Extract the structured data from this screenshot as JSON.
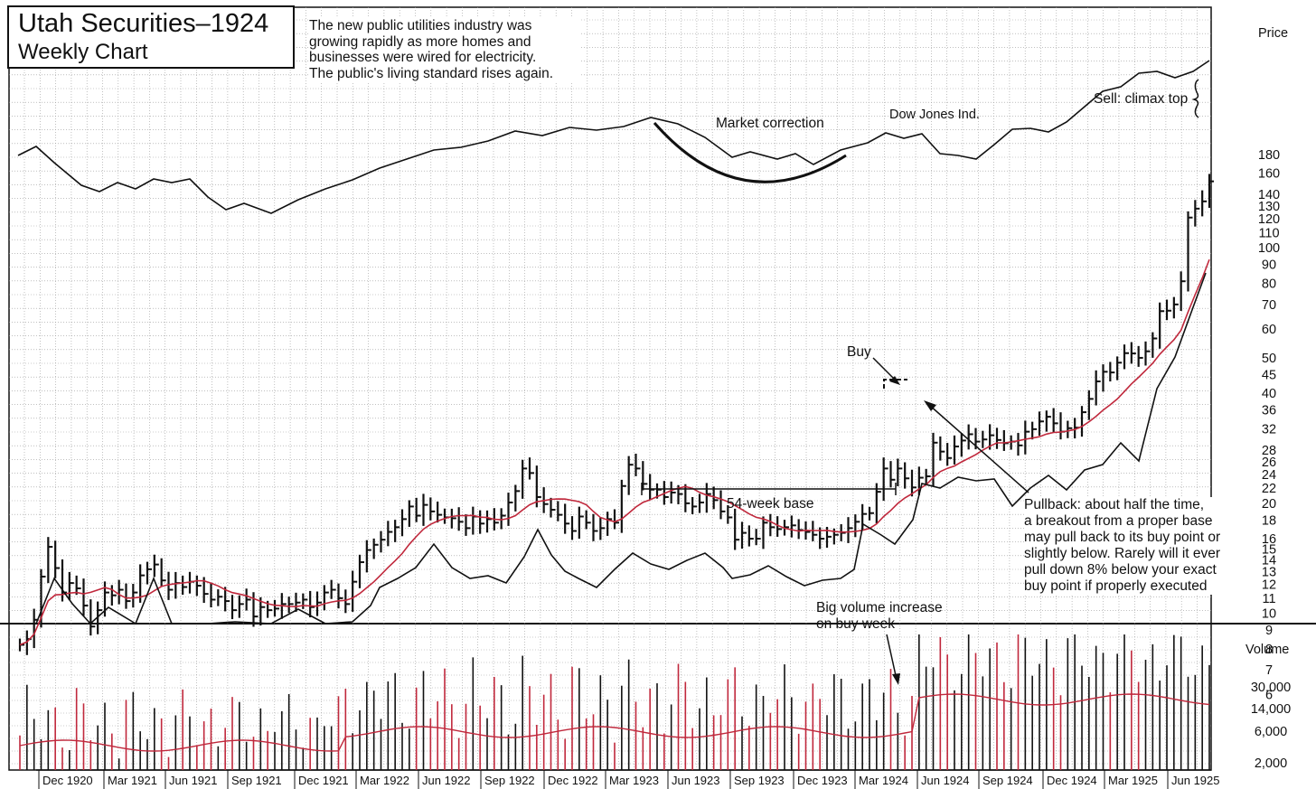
{
  "title": "Utah Securities–1924",
  "subtitle": "Weekly Chart",
  "intro_text": [
    "The new public utilities industry was",
    "growing rapidly as more homes and",
    "businesses were wired for electricity.",
    "The public's living standard rises again."
  ],
  "annotations": {
    "market_correction": "Market correction",
    "dow_jones": "Dow Jones Ind.",
    "sell": "Sell: climax top",
    "buy": "Buy",
    "base": "54-week base",
    "pullback": [
      "Pullback: about half the time,",
      "a breakout from a proper base",
      "may pull back to its buy point or",
      "slightly below. Rarely will it ever",
      "pull down 8% below your exact",
      "buy point if properly executed"
    ],
    "volume_note": [
      "Big volume increase",
      "on buy week"
    ]
  },
  "colors": {
    "price_bar": "#111111",
    "moving_average": "#c0283c",
    "grid": "#9a9a9a"
  },
  "chart_data": {
    "type": "line",
    "price_axis": {
      "label": "Price",
      "scale": "log",
      "ticks": [
        180,
        160,
        140,
        130,
        120,
        110,
        100,
        90,
        80,
        70,
        60,
        50,
        45,
        40,
        36,
        32,
        28,
        26,
        24,
        22,
        20,
        18,
        16,
        15,
        14,
        13,
        12,
        11,
        10,
        9,
        8,
        7,
        6
      ]
    },
    "volume_axis": {
      "label": "Volume",
      "ticks": [
        "30,000",
        "14,000",
        "6,000",
        "2,000"
      ]
    },
    "x_labels": [
      "Dec 1920",
      "Mar 1921",
      "Jun 1921",
      "Sep 1921",
      "Dec 1921",
      "Mar 1922",
      "Jun 1922",
      "Sep 1922",
      "Dec 1922",
      "Mar 1923",
      "Jun 1923",
      "Sep 1923",
      "Dec 1923",
      "Mar 1924",
      "Jun 1924",
      "Sep 1924",
      "Dec 1924",
      "Mar 1925",
      "Jun 1925"
    ],
    "grid": true,
    "price_weekly_close": [
      8.2,
      8.5,
      9.6,
      12.6,
      15.2,
      13.3,
      11.4,
      12.1,
      11.7,
      10.5,
      9.2,
      10.2,
      11.4,
      11.2,
      11.6,
      10.8,
      11.4,
      12.7,
      13.2,
      13.6,
      12.3,
      11.6,
      12.1,
      11.8,
      12.2,
      11.9,
      11.3,
      10.9,
      11.1,
      10.8,
      10.2,
      10.6,
      10.9,
      9.8,
      10.4,
      10.2,
      10.3,
      10.6,
      10.6,
      10.7,
      10.9,
      10.4,
      10.7,
      11.4,
      11.6,
      11.0,
      10.6,
      12.2,
      13.8,
      14.9,
      15.4,
      15.9,
      16.7,
      17.2,
      18.1,
      19.6,
      18.5,
      19.8,
      19.0,
      18.6,
      18.3,
      18.2,
      17.8,
      17.1,
      18.4,
      17.6,
      18.1,
      17.7,
      18.5,
      20.1,
      21.6,
      24.9,
      24.2,
      20.8,
      19.9,
      19.2,
      18.6,
      17.6,
      16.8,
      18.4,
      17.7,
      16.8,
      17.1,
      18.1,
      17.7,
      22.3,
      25.5,
      24.9,
      22.6,
      21.8,
      21.8,
      20.8,
      21.4,
      21.2,
      20.0,
      19.6,
      20.1,
      21.2,
      20.4,
      19.0,
      18.3,
      15.9,
      16.6,
      16.0,
      16.0,
      17.7,
      17.2,
      17.0,
      17.2,
      17.4,
      16.9,
      16.7,
      16.4,
      16.0,
      16.2,
      16.4,
      16.6,
      17.1,
      17.8,
      18.7,
      18.8,
      21.5,
      24.9,
      23.2,
      24.9,
      23.4,
      22.1,
      23.5,
      23.7,
      29.3,
      27.7,
      26.6,
      28.6,
      29.7,
      30.9,
      29.5,
      29.9,
      30.7,
      29.8,
      29.2,
      29.5,
      28.8,
      31.4,
      31.9,
      33.5,
      34.5,
      33.1,
      31.4,
      32.1,
      32.2,
      35.5,
      38.6,
      43.1,
      45.8,
      45.6,
      48.5,
      51.5,
      51.4,
      50.0,
      52.1,
      56.5,
      67.1,
      67.3,
      70.0,
      81.0,
      121.0,
      128.0,
      134.0,
      152.0
    ],
    "moving_average_note": "10-week line (red)",
    "rs_line_note": "relative strength line (lower black line)",
    "dow_jones_line_note": "upper black line"
  }
}
